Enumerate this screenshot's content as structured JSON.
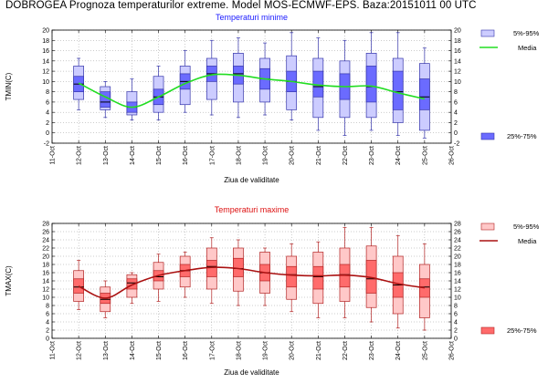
{
  "header": {
    "title": "DOBROGEA  Prognoza temperaturilor extreme.  Model MOS-ECMWF-EPS. Baza:20151011 00 UTC"
  },
  "legend": {
    "range_label": "5%-95%",
    "mean_label": "Media",
    "iqr_label": "25%-75%"
  },
  "chart_data": [
    {
      "type": "box",
      "title": "Temperaturi minime",
      "title_color": "#1a1aff",
      "xlabel": "Ziua de validitate",
      "ylabel": "TMIN(C)",
      "ylim": [
        -2,
        20
      ],
      "yticks": [
        -2,
        0,
        2,
        4,
        6,
        8,
        10,
        12,
        14,
        16,
        18,
        20
      ],
      "xticks": [
        "11-Oct",
        "12-Oct",
        "13-Oct",
        "14-Oct",
        "15-Oct",
        "16-Oct",
        "17-Oct",
        "18-Oct",
        "19-Oct",
        "20-Oct",
        "21-Oct",
        "22-Oct",
        "23-Oct",
        "24-Oct",
        "25-Oct",
        "26-Oct"
      ],
      "grid": true,
      "colors": {
        "range_fill": "#ccccff",
        "iqr_fill": "#6b6bff",
        "edge": "#3333aa",
        "mean_line": "#22dd22"
      },
      "boxes": [
        {
          "x": "12-Oct",
          "p5": 6.5,
          "p25": 8.0,
          "median": 9.5,
          "p75": 11.0,
          "p95": 13.0,
          "min": 4.5,
          "max": 14.5
        },
        {
          "x": "13-Oct",
          "p5": 4.5,
          "p25": 5.0,
          "median": 6.0,
          "p75": 8.0,
          "p95": 9.0,
          "min": 3.0,
          "max": 10.0
        },
        {
          "x": "14-Oct",
          "p5": 3.5,
          "p25": 4.0,
          "median": 5.0,
          "p75": 6.0,
          "p95": 8.0,
          "min": 2.5,
          "max": 10.5
        },
        {
          "x": "15-Oct",
          "p5": 4.0,
          "p25": 5.5,
          "median": 7.0,
          "p75": 8.5,
          "p95": 11.0,
          "min": 2.5,
          "max": 13.0
        },
        {
          "x": "16-Oct",
          "p5": 5.5,
          "p25": 8.5,
          "median": 10.0,
          "p75": 11.5,
          "p95": 13.0,
          "min": 4.0,
          "max": 16.0
        },
        {
          "x": "17-Oct",
          "p5": 6.5,
          "p25": 10.0,
          "median": 11.5,
          "p75": 13.0,
          "p95": 14.5,
          "min": 3.5,
          "max": 18.0
        },
        {
          "x": "18-Oct",
          "p5": 6.0,
          "p25": 9.5,
          "median": 11.5,
          "p75": 13.0,
          "p95": 15.5,
          "min": 3.0,
          "max": 18.5
        },
        {
          "x": "19-Oct",
          "p5": 6.0,
          "p25": 8.5,
          "median": 10.5,
          "p75": 12.5,
          "p95": 14.5,
          "min": 3.5,
          "max": 17.5
        },
        {
          "x": "20-Oct",
          "p5": 4.5,
          "p25": 8.0,
          "median": 10.0,
          "p75": 12.0,
          "p95": 15.0,
          "min": 2.5,
          "max": 19.5
        },
        {
          "x": "21-Oct",
          "p5": 3.0,
          "p25": 7.0,
          "median": 9.0,
          "p75": 12.0,
          "p95": 14.5,
          "min": 0.5,
          "max": 18.5
        },
        {
          "x": "22-Oct",
          "p5": 3.0,
          "p25": 6.5,
          "median": 9.0,
          "p75": 11.5,
          "p95": 14.0,
          "min": -0.5,
          "max": 18.0
        },
        {
          "x": "23-Oct",
          "p5": 3.0,
          "p25": 6.0,
          "median": 9.0,
          "p75": 13.0,
          "p95": 15.5,
          "min": 0.5,
          "max": 19.5
        },
        {
          "x": "24-Oct",
          "p5": 2.0,
          "p25": 4.5,
          "median": 8.0,
          "p75": 12.0,
          "p95": 14.5,
          "min": -0.5,
          "max": 19.5
        },
        {
          "x": "25-Oct",
          "p5": 0.5,
          "p25": 4.5,
          "median": 7.0,
          "p75": 10.5,
          "p95": 13.5,
          "min": -1.0,
          "max": 16.5
        }
      ],
      "mean": [
        9.7,
        7.0,
        5.0,
        7.0,
        9.6,
        11.3,
        11.2,
        10.5,
        10.0,
        9.3,
        9.0,
        9.1,
        7.8,
        6.6
      ]
    },
    {
      "type": "box",
      "title": "Temperaturi maxime",
      "title_color": "#dd1111",
      "xlabel": "Ziua de validitate",
      "ylabel": "TMAX(C)",
      "ylim": [
        0,
        28
      ],
      "yticks": [
        0,
        2,
        4,
        6,
        8,
        10,
        12,
        14,
        16,
        18,
        20,
        22,
        24,
        26,
        28
      ],
      "xticks": [
        "11-Oct",
        "12-Oct",
        "13-Oct",
        "14-Oct",
        "15-Oct",
        "16-Oct",
        "17-Oct",
        "18-Oct",
        "19-Oct",
        "20-Oct",
        "21-Oct",
        "22-Oct",
        "23-Oct",
        "24-Oct",
        "25-Oct",
        "26-Oct"
      ],
      "grid": true,
      "colors": {
        "range_fill": "#ffc8c8",
        "iqr_fill": "#ff6b6b",
        "edge": "#b22222",
        "mean_line": "#aa1111"
      },
      "boxes": [
        {
          "x": "12-Oct",
          "p5": 9.0,
          "p25": 11.0,
          "median": 12.5,
          "p75": 14.5,
          "p95": 16.5,
          "min": 7.0,
          "max": 19.0
        },
        {
          "x": "13-Oct",
          "p5": 6.5,
          "p25": 8.5,
          "median": 9.5,
          "p75": 11.0,
          "p95": 12.5,
          "min": 5.0,
          "max": 14.0
        },
        {
          "x": "14-Oct",
          "p5": 10.0,
          "p25": 12.0,
          "median": 13.5,
          "p75": 14.5,
          "p95": 15.5,
          "min": 8.5,
          "max": 16.0
        },
        {
          "x": "15-Oct",
          "p5": 12.0,
          "p25": 14.0,
          "median": 15.0,
          "p75": 16.5,
          "p95": 18.5,
          "min": 9.0,
          "max": 20.5
        },
        {
          "x": "16-Oct",
          "p5": 12.5,
          "p25": 15.0,
          "median": 16.5,
          "p75": 18.0,
          "p95": 20.0,
          "min": 10.0,
          "max": 21.0
        },
        {
          "x": "17-Oct",
          "p5": 12.0,
          "p25": 15.0,
          "median": 17.5,
          "p75": 19.0,
          "p95": 22.0,
          "min": 8.5,
          "max": 24.5
        },
        {
          "x": "18-Oct",
          "p5": 11.5,
          "p25": 15.0,
          "median": 17.0,
          "p75": 19.5,
          "p95": 22.0,
          "min": 8.0,
          "max": 24.0
        },
        {
          "x": "19-Oct",
          "p5": 11.0,
          "p25": 14.0,
          "median": 16.0,
          "p75": 18.0,
          "p95": 21.0,
          "min": 8.0,
          "max": 22.0
        },
        {
          "x": "20-Oct",
          "p5": 9.5,
          "p25": 12.5,
          "median": 15.5,
          "p75": 17.5,
          "p95": 20.0,
          "min": 6.5,
          "max": 23.0
        },
        {
          "x": "21-Oct",
          "p5": 8.5,
          "p25": 12.0,
          "median": 15.0,
          "p75": 17.5,
          "p95": 21.0,
          "min": 5.0,
          "max": 23.5
        },
        {
          "x": "22-Oct",
          "p5": 9.0,
          "p25": 12.5,
          "median": 15.5,
          "p75": 18.0,
          "p95": 22.0,
          "min": 5.0,
          "max": 27.0
        },
        {
          "x": "23-Oct",
          "p5": 7.5,
          "p25": 11.0,
          "median": 14.5,
          "p75": 19.0,
          "p95": 22.5,
          "min": 4.0,
          "max": 27.0
        },
        {
          "x": "24-Oct",
          "p5": 6.0,
          "p25": 10.0,
          "median": 13.0,
          "p75": 16.0,
          "p95": 20.0,
          "min": 2.5,
          "max": 25.0
        },
        {
          "x": "25-Oct",
          "p5": 5.0,
          "p25": 10.0,
          "median": 12.5,
          "p75": 14.5,
          "p95": 18.0,
          "min": 2.0,
          "max": 23.0
        }
      ],
      "mean": [
        12.7,
        9.8,
        13.0,
        15.3,
        16.5,
        17.3,
        17.0,
        16.0,
        15.4,
        15.2,
        15.4,
        14.8,
        13.3,
        12.3
      ]
    }
  ]
}
